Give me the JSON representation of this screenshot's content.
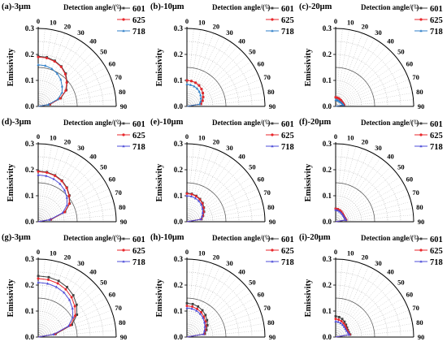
{
  "legend_series": [
    "601",
    "625",
    "718"
  ],
  "series_colors": {
    "601": "#404040",
    "625": "#e8262b",
    "718": "#2f7fc8"
  },
  "alt_colors": {
    "718": "#4e4ed8"
  },
  "angle_ticks": [
    "0",
    "10",
    "20",
    "30",
    "40",
    "50",
    "60",
    "70",
    "80",
    "90"
  ],
  "radial_ticks": [
    "0.0",
    "0.1",
    "0.2",
    "0.3"
  ],
  "chart_data": [
    {
      "id": "a",
      "type": "polar-line",
      "title": "(a)-3μm",
      "legend_title": "Detection angle/(°)",
      "ylabel": "Emissivity",
      "rlim": [
        0,
        0.3
      ],
      "theta_range": [
        0,
        90
      ],
      "theta": [
        0,
        10,
        20,
        30,
        40,
        50,
        60,
        70,
        80,
        90
      ],
      "series": [
        {
          "name": "601",
          "values": [
            0.193,
            0.192,
            0.187,
            0.178,
            0.165,
            0.145,
            0.125,
            0.092,
            0.046,
            0.0
          ]
        },
        {
          "name": "625",
          "values": [
            0.19,
            0.189,
            0.184,
            0.176,
            0.162,
            0.143,
            0.122,
            0.09,
            0.045,
            0.0
          ]
        },
        {
          "name": "718",
          "values": [
            0.16,
            0.159,
            0.154,
            0.146,
            0.135,
            0.12,
            0.106,
            0.08,
            0.04,
            0.0
          ]
        }
      ]
    },
    {
      "id": "b",
      "type": "polar-line",
      "title": "(b)-10μm",
      "legend_title": "Detection angle/(°)",
      "ylabel": "Emissivity",
      "rlim": [
        0,
        0.3
      ],
      "theta_range": [
        0,
        90
      ],
      "theta": [
        0,
        10,
        20,
        30,
        40,
        50,
        60,
        70,
        80,
        90
      ],
      "series": [
        {
          "name": "601",
          "values": [
            0.1,
            0.099,
            0.097,
            0.093,
            0.087,
            0.08,
            0.072,
            0.064,
            0.055,
            0.0
          ]
        },
        {
          "name": "625",
          "values": [
            0.1,
            0.099,
            0.097,
            0.093,
            0.087,
            0.08,
            0.072,
            0.064,
            0.055,
            0.0
          ]
        },
        {
          "name": "718",
          "values": [
            0.085,
            0.084,
            0.082,
            0.079,
            0.074,
            0.068,
            0.062,
            0.056,
            0.05,
            0.0
          ]
        }
      ]
    },
    {
      "id": "c",
      "type": "polar-line",
      "title": "(c)-20μm",
      "legend_title": "Detection angle/(°)",
      "ylabel": "Emissivity",
      "rlim": [
        0,
        0.3
      ],
      "theta_range": [
        0,
        90
      ],
      "theta": [
        0,
        10,
        20,
        30,
        40,
        50,
        60,
        70,
        80,
        90
      ],
      "series": [
        {
          "name": "601",
          "values": [
            0.035,
            0.034,
            0.033,
            0.032,
            0.031,
            0.03,
            0.03,
            0.031,
            0.033,
            0.0
          ]
        },
        {
          "name": "625",
          "values": [
            0.035,
            0.034,
            0.033,
            0.032,
            0.031,
            0.03,
            0.03,
            0.031,
            0.033,
            0.0
          ]
        },
        {
          "name": "718",
          "values": [
            0.025,
            0.025,
            0.024,
            0.024,
            0.024,
            0.025,
            0.026,
            0.028,
            0.031,
            0.0
          ]
        }
      ]
    },
    {
      "id": "d",
      "type": "polar-line",
      "title": "(d)-3μm",
      "legend_title": "Detection angle/(°)",
      "ylabel": "Emissivity",
      "rlim": [
        0,
        0.3
      ],
      "theta_range": [
        0,
        90
      ],
      "theta": [
        0,
        10,
        20,
        30,
        40,
        50,
        60,
        70,
        80,
        90
      ],
      "series": [
        {
          "name": "601",
          "values": [
            0.195,
            0.194,
            0.19,
            0.183,
            0.172,
            0.157,
            0.14,
            0.11,
            0.05,
            0.0
          ]
        },
        {
          "name": "625",
          "values": [
            0.193,
            0.192,
            0.188,
            0.181,
            0.17,
            0.155,
            0.138,
            0.108,
            0.049,
            0.0
          ]
        },
        {
          "name": "718",
          "values": [
            0.18,
            0.179,
            0.175,
            0.168,
            0.158,
            0.144,
            0.128,
            0.1,
            0.045,
            0.0
          ]
        }
      ]
    },
    {
      "id": "e",
      "type": "polar-line",
      "title": "(e)-10μm",
      "legend_title": "Detection angle/(°)",
      "ylabel": "Emissivity",
      "rlim": [
        0,
        0.3
      ],
      "theta_range": [
        0,
        90
      ],
      "theta": [
        0,
        10,
        20,
        30,
        40,
        50,
        60,
        70,
        80,
        90
      ],
      "series": [
        {
          "name": "601",
          "values": [
            0.11,
            0.109,
            0.106,
            0.101,
            0.094,
            0.085,
            0.076,
            0.066,
            0.057,
            0.0
          ]
        },
        {
          "name": "625",
          "values": [
            0.108,
            0.107,
            0.104,
            0.099,
            0.092,
            0.083,
            0.074,
            0.065,
            0.056,
            0.0
          ]
        },
        {
          "name": "718",
          "values": [
            0.1,
            0.099,
            0.096,
            0.092,
            0.086,
            0.078,
            0.07,
            0.062,
            0.055,
            0.0
          ]
        }
      ]
    },
    {
      "id": "f",
      "type": "polar-line",
      "title": "(f)-20μm",
      "legend_title": "Detection angle/(°)",
      "ylabel": "Emissivity",
      "rlim": [
        0,
        0.3
      ],
      "theta_range": [
        0,
        90
      ],
      "theta": [
        0,
        10,
        20,
        30,
        40,
        50,
        60,
        70,
        80,
        90
      ],
      "series": [
        {
          "name": "601",
          "values": [
            0.05,
            0.049,
            0.047,
            0.044,
            0.041,
            0.039,
            0.038,
            0.039,
            0.041,
            0.0
          ]
        },
        {
          "name": "625",
          "values": [
            0.05,
            0.049,
            0.047,
            0.044,
            0.041,
            0.039,
            0.038,
            0.039,
            0.041,
            0.0
          ]
        },
        {
          "name": "718",
          "values": [
            0.045,
            0.044,
            0.042,
            0.04,
            0.038,
            0.037,
            0.037,
            0.038,
            0.04,
            0.0
          ]
        }
      ]
    },
    {
      "id": "g",
      "type": "polar-line",
      "title": "(g)-3μm",
      "legend_title": "Detection angle/(°)",
      "ylabel": "Emissivity",
      "rlim": [
        0,
        0.3
      ],
      "theta_range": [
        0,
        90
      ],
      "theta": [
        0,
        10,
        20,
        30,
        40,
        50,
        60,
        70,
        80,
        90
      ],
      "series": [
        {
          "name": "601",
          "values": [
            0.235,
            0.234,
            0.23,
            0.222,
            0.21,
            0.193,
            0.172,
            0.138,
            0.068,
            0.0
          ]
        },
        {
          "name": "625",
          "values": [
            0.225,
            0.224,
            0.22,
            0.212,
            0.2,
            0.184,
            0.164,
            0.132,
            0.065,
            0.0
          ]
        },
        {
          "name": "718",
          "values": [
            0.21,
            0.209,
            0.205,
            0.198,
            0.187,
            0.172,
            0.154,
            0.124,
            0.06,
            0.0
          ]
        }
      ]
    },
    {
      "id": "h",
      "type": "polar-line",
      "title": "(h)-10μm",
      "legend_title": "Detection angle/(°)",
      "ylabel": "Emissivity",
      "rlim": [
        0,
        0.3
      ],
      "theta_range": [
        0,
        90
      ],
      "theta": [
        0,
        10,
        20,
        30,
        40,
        50,
        60,
        70,
        80,
        90
      ],
      "series": [
        {
          "name": "601",
          "values": [
            0.13,
            0.129,
            0.125,
            0.119,
            0.111,
            0.101,
            0.091,
            0.08,
            0.07,
            0.0
          ]
        },
        {
          "name": "625",
          "values": [
            0.12,
            0.119,
            0.115,
            0.11,
            0.102,
            0.093,
            0.084,
            0.075,
            0.067,
            0.0
          ]
        },
        {
          "name": "718",
          "values": [
            0.112,
            0.111,
            0.108,
            0.103,
            0.096,
            0.088,
            0.08,
            0.072,
            0.065,
            0.0
          ]
        }
      ]
    },
    {
      "id": "i",
      "type": "polar-line",
      "title": "(i)-20μm",
      "legend_title": "Detection angle/(°)",
      "ylabel": "Emissivity",
      "rlim": [
        0,
        0.3
      ],
      "theta_range": [
        0,
        90
      ],
      "theta": [
        0,
        10,
        20,
        30,
        40,
        50,
        60,
        70,
        80,
        90
      ],
      "series": [
        {
          "name": "601",
          "values": [
            0.08,
            0.078,
            0.074,
            0.068,
            0.062,
            0.057,
            0.054,
            0.054,
            0.057,
            0.0
          ]
        },
        {
          "name": "625",
          "values": [
            0.07,
            0.068,
            0.065,
            0.061,
            0.057,
            0.053,
            0.051,
            0.052,
            0.055,
            0.0
          ]
        },
        {
          "name": "718",
          "values": [
            0.06,
            0.059,
            0.057,
            0.054,
            0.051,
            0.049,
            0.048,
            0.05,
            0.053,
            0.0
          ]
        }
      ]
    }
  ]
}
